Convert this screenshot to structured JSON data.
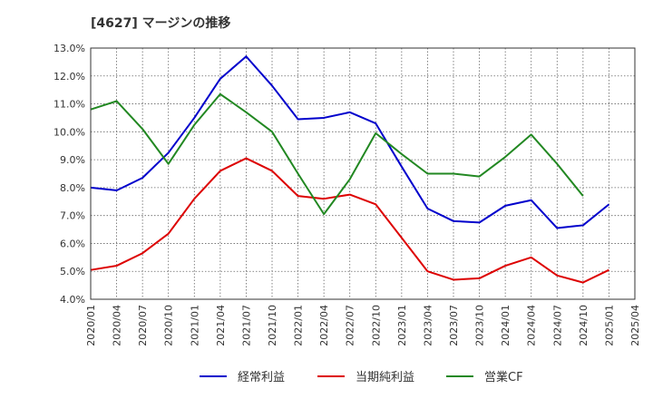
{
  "chart_data": {
    "type": "line",
    "title": "[4627]  マージンの推移",
    "xlabel": "",
    "ylabel": "",
    "ylim": [
      4.0,
      13.0
    ],
    "y_ticks": [
      "13.0%",
      "12.0%",
      "11.0%",
      "10.0%",
      "9.0%",
      "8.0%",
      "7.0%",
      "6.0%",
      "5.0%",
      "4.0%"
    ],
    "y_tick_values": [
      13,
      12,
      11,
      10,
      9,
      8,
      7,
      6,
      5,
      4
    ],
    "x_ticks": [
      "2020/01",
      "2020/04",
      "2020/07",
      "2020/10",
      "2021/01",
      "2021/04",
      "2021/07",
      "2021/10",
      "2022/01",
      "2022/04",
      "2022/07",
      "2022/10",
      "2023/01",
      "2023/04",
      "2023/07",
      "2023/10",
      "2024/01",
      "2024/04",
      "2024/07",
      "2024/10",
      "2025/01",
      "2025/04"
    ],
    "grid": true,
    "legend_position": "bottom",
    "series": [
      {
        "name": "経常利益",
        "color": "#0000cc",
        "values": [
          8.0,
          7.9,
          8.35,
          9.25,
          10.5,
          11.9,
          12.7,
          11.65,
          10.45,
          10.5,
          10.7,
          10.3,
          8.75,
          7.25,
          6.8,
          6.75,
          7.35,
          7.55,
          6.55,
          6.65,
          7.4
        ]
      },
      {
        "name": "当期純利益",
        "color": "#dd0000",
        "values": [
          5.05,
          5.2,
          5.65,
          6.35,
          7.6,
          8.6,
          9.05,
          8.6,
          7.7,
          7.6,
          7.75,
          7.4,
          6.2,
          5.0,
          4.7,
          4.75,
          5.2,
          5.5,
          4.85,
          4.6,
          5.05
        ]
      },
      {
        "name": "営業CF",
        "color": "#228822",
        "values": [
          10.8,
          11.1,
          10.1,
          8.85,
          10.25,
          11.35,
          10.7,
          10.0,
          8.5,
          7.05,
          8.3,
          9.95,
          9.2,
          8.5,
          8.5,
          8.4,
          9.1,
          9.9,
          8.85,
          7.7,
          null
        ]
      }
    ]
  }
}
